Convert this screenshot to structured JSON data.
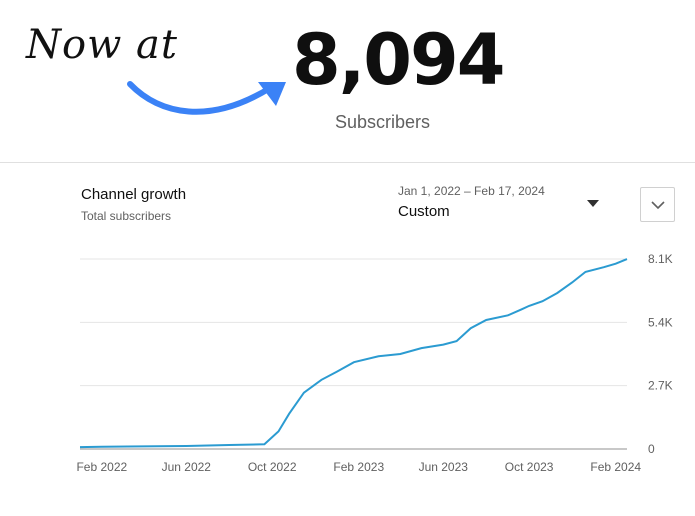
{
  "hero": {
    "handwritten": "Now at",
    "number": "8,094",
    "caption": "Subscribers"
  },
  "card": {
    "title": "Channel growth",
    "subtitle": "Total subscribers",
    "range_dates": "Jan 1, 2022 – Feb 17, 2024",
    "range_value": "Custom"
  },
  "icons": {
    "range": "caret-down-icon",
    "expand": "chevron-down-icon",
    "arrow": "curved-arrow-icon"
  },
  "colors": {
    "line": "#2b9bd1",
    "arrow": "#3b82f6",
    "grid": "#e5e5e5"
  },
  "chart_data": {
    "type": "line",
    "title": "Channel growth",
    "subtitle": "Total subscribers",
    "xlabel": "",
    "ylabel": "",
    "ylim": [
      0,
      8100
    ],
    "xlim": [
      "2022-01-01",
      "2024-02-17"
    ],
    "grid": true,
    "y_ticks": [
      {
        "value": 0,
        "label": "0"
      },
      {
        "value": 2700,
        "label": "2.7K"
      },
      {
        "value": 5400,
        "label": "5.4K"
      },
      {
        "value": 8100,
        "label": "8.1K"
      }
    ],
    "x_ticks": [
      {
        "date": "2022-02-01",
        "label": "Feb 2022"
      },
      {
        "date": "2022-06-01",
        "label": "Jun 2022"
      },
      {
        "date": "2022-10-01",
        "label": "Oct 2022"
      },
      {
        "date": "2023-02-01",
        "label": "Feb 2023"
      },
      {
        "date": "2023-06-01",
        "label": "Jun 2023"
      },
      {
        "date": "2023-10-01",
        "label": "Oct 2023"
      },
      {
        "date": "2024-02-01",
        "label": "Feb 2024"
      }
    ],
    "series": [
      {
        "values": [
          {
            "x": "2022-01-01",
            "y": 80
          },
          {
            "x": "2022-02-01",
            "y": 100
          },
          {
            "x": "2022-06-01",
            "y": 130
          },
          {
            "x": "2022-08-01",
            "y": 170
          },
          {
            "x": "2022-09-20",
            "y": 200
          },
          {
            "x": "2022-10-10",
            "y": 750
          },
          {
            "x": "2022-10-25",
            "y": 1500
          },
          {
            "x": "2022-11-15",
            "y": 2400
          },
          {
            "x": "2022-12-10",
            "y": 2950
          },
          {
            "x": "2023-01-01",
            "y": 3300
          },
          {
            "x": "2023-01-25",
            "y": 3700
          },
          {
            "x": "2023-03-01",
            "y": 3950
          },
          {
            "x": "2023-04-01",
            "y": 4050
          },
          {
            "x": "2023-05-01",
            "y": 4300
          },
          {
            "x": "2023-06-01",
            "y": 4450
          },
          {
            "x": "2023-06-20",
            "y": 4600
          },
          {
            "x": "2023-07-10",
            "y": 5150
          },
          {
            "x": "2023-08-01",
            "y": 5500
          },
          {
            "x": "2023-09-01",
            "y": 5700
          },
          {
            "x": "2023-09-20",
            "y": 5950
          },
          {
            "x": "2023-10-01",
            "y": 6100
          },
          {
            "x": "2023-10-20",
            "y": 6300
          },
          {
            "x": "2023-11-10",
            "y": 6650
          },
          {
            "x": "2023-12-01",
            "y": 7100
          },
          {
            "x": "2023-12-20",
            "y": 7550
          },
          {
            "x": "2024-01-15",
            "y": 7750
          },
          {
            "x": "2024-02-01",
            "y": 7900
          },
          {
            "x": "2024-02-17",
            "y": 8094
          }
        ]
      }
    ]
  }
}
